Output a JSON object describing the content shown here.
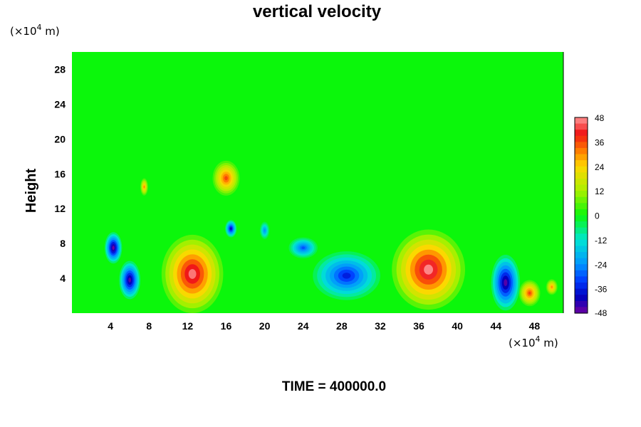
{
  "chart_data": {
    "type": "heatmap",
    "title": "vertical velocity",
    "ylabel": "Height",
    "y_unit_prefix": "(×10",
    "y_unit_exp": "4",
    "y_unit_suffix": " m)",
    "x_unit_prefix": "(×10",
    "x_unit_exp": "4",
    "x_unit_suffix": " m)",
    "xlim": [
      0,
      51
    ],
    "ylim": [
      0,
      30
    ],
    "x_ticks": [
      4,
      8,
      12,
      16,
      20,
      24,
      28,
      32,
      36,
      40,
      44,
      48
    ],
    "y_ticks": [
      4,
      8,
      12,
      16,
      20,
      24,
      28
    ],
    "colorbar": {
      "min": -48,
      "max": 48,
      "ticks": [
        48,
        36,
        24,
        12,
        0,
        -12,
        -24,
        -36,
        -48
      ]
    },
    "features": [
      {
        "kind": "updraft",
        "x": 12.5,
        "y": 4.5,
        "rx": 3.2,
        "ry": 4.5,
        "value": 46
      },
      {
        "kind": "updraft",
        "x": 37,
        "y": 5,
        "rx": 3.8,
        "ry": 4.6,
        "value": 47
      },
      {
        "kind": "updraft",
        "x": 47.5,
        "y": 2.3,
        "rx": 1.1,
        "ry": 1.5,
        "value": 36
      },
      {
        "kind": "updraft",
        "x": 49.8,
        "y": 3.0,
        "rx": 0.6,
        "ry": 0.9,
        "value": 30
      },
      {
        "kind": "updraft",
        "x": 16,
        "y": 15.5,
        "rx": 1.4,
        "ry": 2.0,
        "value": 36
      },
      {
        "kind": "updraft",
        "x": 7.5,
        "y": 14.5,
        "rx": 0.4,
        "ry": 1.0,
        "value": 30
      },
      {
        "kind": "downdraft",
        "x": 6,
        "y": 3.8,
        "rx": 1.1,
        "ry": 2.2,
        "value": -46
      },
      {
        "kind": "downdraft",
        "x": 4.3,
        "y": 7.5,
        "rx": 0.9,
        "ry": 1.8,
        "value": -48
      },
      {
        "kind": "downdraft",
        "x": 28.5,
        "y": 4.3,
        "rx": 3.5,
        "ry": 2.8,
        "value": -36
      },
      {
        "kind": "downdraft",
        "x": 45,
        "y": 3.5,
        "rx": 1.5,
        "ry": 3.2,
        "value": -46
      },
      {
        "kind": "downdraft",
        "x": 16.5,
        "y": 9.7,
        "rx": 0.6,
        "ry": 1.0,
        "value": -40
      },
      {
        "kind": "downdraft",
        "x": 20,
        "y": 9.5,
        "rx": 0.5,
        "ry": 1.0,
        "value": -24
      },
      {
        "kind": "downdraft",
        "x": 24,
        "y": 7.5,
        "rx": 1.5,
        "ry": 1.2,
        "value": -30
      }
    ],
    "time_label": "TIME = 400000.0"
  }
}
